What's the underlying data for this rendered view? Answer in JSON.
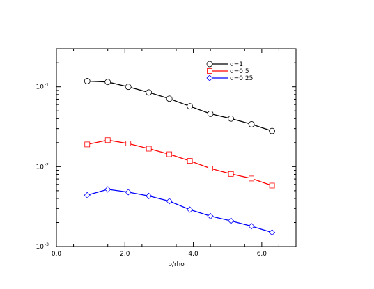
{
  "chart_data": {
    "type": "line",
    "title": "",
    "xlabel": "b/rho",
    "ylabel": "",
    "xlim": [
      0.0,
      7.0
    ],
    "ylim": [
      0.001,
      0.3
    ],
    "yscale": "log",
    "grid": false,
    "legend_position": "top-right",
    "x_ticks": [
      {
        "value": 0.0,
        "label": "0.0"
      },
      {
        "value": 2.0,
        "label": "2.0"
      },
      {
        "value": 4.0,
        "label": "4.0"
      },
      {
        "value": 6.0,
        "label": "6.0"
      }
    ],
    "y_ticks": [
      {
        "value": 0.1,
        "base": "10",
        "exp": "-1"
      },
      {
        "value": 0.01,
        "base": "10",
        "exp": "-2"
      },
      {
        "value": 0.001,
        "base": "10",
        "exp": "-3"
      }
    ],
    "x": [
      0.9,
      1.5,
      2.1,
      2.7,
      3.3,
      3.9,
      4.5,
      5.1,
      5.7,
      6.3
    ],
    "series": [
      {
        "name": "d=1.",
        "color": "#000000",
        "marker": "circle",
        "values": [
          0.118,
          0.115,
          0.1,
          0.085,
          0.071,
          0.057,
          0.046,
          0.04,
          0.034,
          0.028
        ]
      },
      {
        "name": "d=0.5",
        "color": "#ff0000",
        "marker": "square",
        "values": [
          0.019,
          0.0215,
          0.0195,
          0.0168,
          0.0143,
          0.0118,
          0.0095,
          0.0081,
          0.0071,
          0.0058
        ]
      },
      {
        "name": "d=0.25",
        "color": "#0000ff",
        "marker": "diamond",
        "values": [
          0.0044,
          0.0052,
          0.0048,
          0.0043,
          0.0037,
          0.0029,
          0.0024,
          0.0021,
          0.0018,
          0.0015
        ]
      }
    ]
  }
}
